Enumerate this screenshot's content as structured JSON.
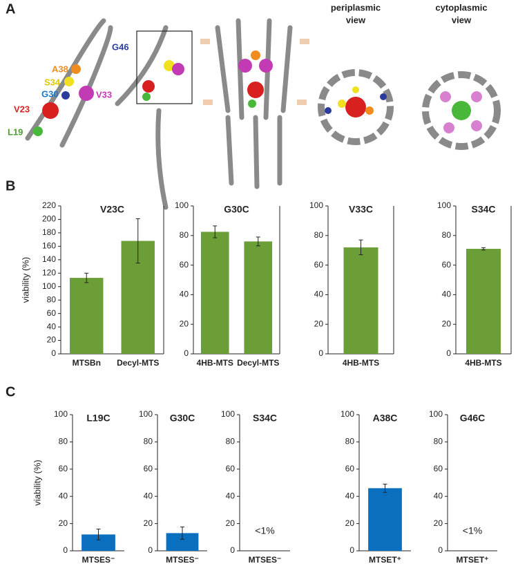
{
  "panel_labels": [
    "A",
    "B",
    "C"
  ],
  "panel_a": {
    "residues": [
      "G46",
      "A38",
      "S34",
      "G30",
      "V33",
      "V23",
      "L19"
    ],
    "views": [
      [
        "periplasmic",
        "view"
      ],
      [
        "cytoplasmic",
        "view"
      ]
    ]
  },
  "chart_data": [
    {
      "type": "bar",
      "title": "V23C",
      "ylabel": "viability (%)",
      "categories": [
        "MTSBn",
        "Decyl-MTS"
      ],
      "values": [
        113,
        168
      ],
      "errors": [
        7,
        33
      ],
      "color": "#6b9e37",
      "ylim": [
        0,
        220
      ],
      "yticks": [
        0,
        20,
        40,
        60,
        80,
        100,
        120,
        140,
        160,
        180,
        200,
        220
      ]
    },
    {
      "type": "bar",
      "title": "G30C",
      "categories": [
        "4HB-MTS",
        "Decyl-MTS"
      ],
      "values": [
        82.5,
        76
      ],
      "errors": [
        4,
        3
      ],
      "color": "#6b9e37",
      "ylim": [
        0,
        100
      ],
      "yticks": [
        0,
        20,
        40,
        60,
        80,
        100
      ]
    },
    {
      "type": "bar",
      "title": "V33C",
      "categories": [
        "4HB-MTS"
      ],
      "values": [
        72
      ],
      "errors": [
        5
      ],
      "color": "#6b9e37",
      "ylim": [
        0,
        100
      ],
      "yticks": [
        0,
        20,
        40,
        60,
        80,
        100
      ]
    },
    {
      "type": "bar",
      "title": "S34C",
      "categories": [
        "4HB-MTS"
      ],
      "values": [
        71
      ],
      "errors": [
        0.8
      ],
      "color": "#6b9e37",
      "ylim": [
        0,
        100
      ],
      "yticks": [
        0,
        20,
        40,
        60,
        80,
        100
      ]
    },
    {
      "type": "bar",
      "title": "L19C",
      "ylabel": "viability (%)",
      "categories": [
        "MTSES⁻"
      ],
      "values": [
        12
      ],
      "errors": [
        4
      ],
      "color": "#0b6fc0",
      "ylim": [
        0,
        100
      ],
      "yticks": [
        0,
        20,
        40,
        60,
        80,
        100
      ]
    },
    {
      "type": "bar",
      "title": "G30C",
      "categories": [
        "MTSES⁻"
      ],
      "values": [
        13
      ],
      "errors": [
        4.5
      ],
      "color": "#0b6fc0",
      "ylim": [
        0,
        100
      ],
      "yticks": [
        0,
        20,
        40,
        60,
        80,
        100
      ]
    },
    {
      "type": "bar",
      "title": "S34C",
      "categories": [
        "MTSES⁻"
      ],
      "values": [
        null
      ],
      "annotation": "<1%",
      "color": "#0b6fc0",
      "ylim": [
        0,
        100
      ],
      "yticks": [
        0,
        20,
        40,
        60,
        80,
        100
      ]
    },
    {
      "type": "bar",
      "title": "A38C",
      "categories": [
        "MTSET⁺"
      ],
      "values": [
        46
      ],
      "errors": [
        3
      ],
      "color": "#0b6fc0",
      "ylim": [
        0,
        100
      ],
      "yticks": [
        0,
        20,
        40,
        60,
        80,
        100
      ]
    },
    {
      "type": "bar",
      "title": "G46C",
      "categories": [
        "MTSET⁺"
      ],
      "values": [
        null
      ],
      "annotation": "<1%",
      "color": "#0b6fc0",
      "ylim": [
        0,
        100
      ],
      "yticks": [
        0,
        20,
        40,
        60,
        80,
        100
      ]
    }
  ]
}
